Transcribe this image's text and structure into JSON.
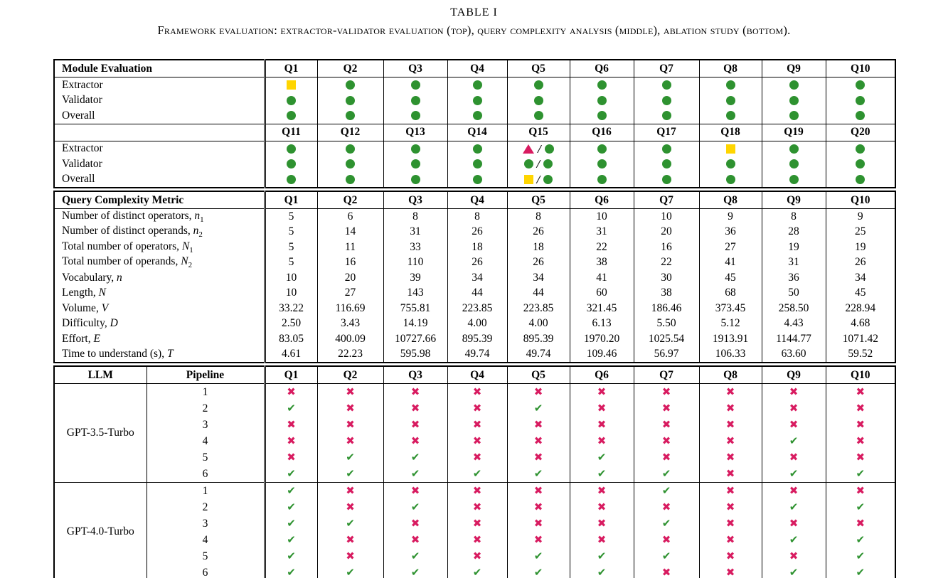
{
  "title": "TABLE I",
  "caption": "Framework evaluation: extractor-validator evaluation (top), query complexity analysis (middle), ablation study (bottom).",
  "colors": {
    "green": "#2E9230",
    "yellow": "#FFD500",
    "pink": "#D81B60"
  },
  "module": {
    "blocks": [
      {
        "header_label": "Module Evaluation",
        "columns": [
          "Q1",
          "Q2",
          "Q3",
          "Q4",
          "Q5",
          "Q6",
          "Q7",
          "Q8",
          "Q9",
          "Q10"
        ],
        "rows": [
          {
            "label": "Extractor",
            "cells": [
              "y",
              "g",
              "g",
              "g",
              "g",
              "g",
              "g",
              "g",
              "g",
              "g"
            ]
          },
          {
            "label": "Validator",
            "cells": [
              "g",
              "g",
              "g",
              "g",
              "g",
              "g",
              "g",
              "g",
              "g",
              "g"
            ]
          },
          {
            "label": "Overall",
            "cells": [
              "g",
              "g",
              "g",
              "g",
              "g",
              "g",
              "g",
              "g",
              "g",
              "g"
            ]
          }
        ]
      },
      {
        "header_label": "",
        "columns": [
          "Q11",
          "Q12",
          "Q13",
          "Q14",
          "Q15",
          "Q16",
          "Q17",
          "Q18",
          "Q19",
          "Q20"
        ],
        "rows": [
          {
            "label": "Extractor",
            "cells": [
              "g",
              "g",
              "g",
              "g",
              "t/g",
              "g",
              "g",
              "y",
              "g",
              "g"
            ]
          },
          {
            "label": "Validator",
            "cells": [
              "g",
              "g",
              "g",
              "g",
              "g/g",
              "g",
              "g",
              "g",
              "g",
              "g"
            ]
          },
          {
            "label": "Overall",
            "cells": [
              "g",
              "g",
              "g",
              "g",
              "y/g",
              "g",
              "g",
              "g",
              "g",
              "g"
            ]
          }
        ]
      }
    ]
  },
  "complexity": {
    "header_label": "Query Complexity Metric",
    "columns": [
      "Q1",
      "Q2",
      "Q3",
      "Q4",
      "Q5",
      "Q6",
      "Q7",
      "Q8",
      "Q9",
      "Q10"
    ],
    "rows": [
      {
        "label": "Number of distinct operators,",
        "var": "n",
        "sub": "1",
        "values": [
          "5",
          "6",
          "8",
          "8",
          "8",
          "10",
          "10",
          "9",
          "8",
          "9"
        ]
      },
      {
        "label": "Number of distinct operands,",
        "var": "n",
        "sub": "2",
        "values": [
          "5",
          "14",
          "31",
          "26",
          "26",
          "31",
          "20",
          "36",
          "28",
          "25"
        ]
      },
      {
        "label": "Total number of operators,",
        "var": "N",
        "sub": "1",
        "values": [
          "5",
          "11",
          "33",
          "18",
          "18",
          "22",
          "16",
          "27",
          "19",
          "19"
        ]
      },
      {
        "label": "Total number of operands,",
        "var": "N",
        "sub": "2",
        "values": [
          "5",
          "16",
          "110",
          "26",
          "26",
          "38",
          "22",
          "41",
          "31",
          "26"
        ]
      },
      {
        "label": "Vocabulary,",
        "var": "n",
        "sub": "",
        "values": [
          "10",
          "20",
          "39",
          "34",
          "34",
          "41",
          "30",
          "45",
          "36",
          "34"
        ]
      },
      {
        "label": "Length,",
        "var": "N",
        "sub": "",
        "values": [
          "10",
          "27",
          "143",
          "44",
          "44",
          "60",
          "38",
          "68",
          "50",
          "45"
        ]
      },
      {
        "label": "Volume,",
        "var": "V",
        "sub": "",
        "values": [
          "33.22",
          "116.69",
          "755.81",
          "223.85",
          "223.85",
          "321.45",
          "186.46",
          "373.45",
          "258.50",
          "228.94"
        ]
      },
      {
        "label": "Difficulty,",
        "var": "D",
        "sub": "",
        "values": [
          "2.50",
          "3.43",
          "14.19",
          "4.00",
          "4.00",
          "6.13",
          "5.50",
          "5.12",
          "4.43",
          "4.68"
        ]
      },
      {
        "label": "Effort,",
        "var": "E",
        "sub": "",
        "values": [
          "83.05",
          "400.09",
          "10727.66",
          "895.39",
          "895.39",
          "1970.20",
          "1025.54",
          "1913.91",
          "1144.77",
          "1071.42"
        ]
      },
      {
        "label": "Time to understand (s),",
        "var": "T",
        "sub": "",
        "values": [
          "4.61",
          "22.23",
          "595.98",
          "49.74",
          "49.74",
          "109.46",
          "56.97",
          "106.33",
          "63.60",
          "59.52"
        ]
      }
    ]
  },
  "ablation": {
    "llm_header": "LLM",
    "pipeline_header": "Pipeline",
    "columns": [
      "Q1",
      "Q2",
      "Q3",
      "Q4",
      "Q5",
      "Q6",
      "Q7",
      "Q8",
      "Q9",
      "Q10"
    ],
    "groups": [
      {
        "llm": "GPT-3.5-Turbo",
        "pipelines": [
          {
            "id": "1",
            "cells": [
              "x",
              "x",
              "x",
              "x",
              "x",
              "x",
              "x",
              "x",
              "x",
              "x"
            ]
          },
          {
            "id": "2",
            "cells": [
              "v",
              "x",
              "x",
              "x",
              "v",
              "x",
              "x",
              "x",
              "x",
              "x"
            ]
          },
          {
            "id": "3",
            "cells": [
              "x",
              "x",
              "x",
              "x",
              "x",
              "x",
              "x",
              "x",
              "x",
              "x"
            ]
          },
          {
            "id": "4",
            "cells": [
              "x",
              "x",
              "x",
              "x",
              "x",
              "x",
              "x",
              "x",
              "v",
              "x"
            ]
          },
          {
            "id": "5",
            "cells": [
              "x",
              "v",
              "v",
              "x",
              "x",
              "v",
              "x",
              "x",
              "x",
              "x"
            ]
          },
          {
            "id": "6",
            "cells": [
              "v",
              "v",
              "v",
              "v",
              "v",
              "v",
              "v",
              "x",
              "v",
              "v"
            ]
          }
        ]
      },
      {
        "llm": "GPT-4.0-Turbo",
        "pipelines": [
          {
            "id": "1",
            "cells": [
              "v",
              "x",
              "x",
              "x",
              "x",
              "x",
              "v",
              "x",
              "x",
              "x"
            ]
          },
          {
            "id": "2",
            "cells": [
              "v",
              "x",
              "v",
              "x",
              "x",
              "x",
              "x",
              "x",
              "v",
              "v"
            ]
          },
          {
            "id": "3",
            "cells": [
              "v",
              "v",
              "x",
              "x",
              "x",
              "x",
              "v",
              "x",
              "x",
              "x"
            ]
          },
          {
            "id": "4",
            "cells": [
              "v",
              "x",
              "x",
              "x",
              "x",
              "x",
              "x",
              "x",
              "v",
              "v"
            ]
          },
          {
            "id": "5",
            "cells": [
              "v",
              "x",
              "v",
              "x",
              "v",
              "v",
              "v",
              "x",
              "x",
              "v"
            ]
          },
          {
            "id": "6",
            "cells": [
              "v",
              "v",
              "v",
              "v",
              "v",
              "v",
              "x",
              "x",
              "v",
              "v"
            ]
          }
        ]
      }
    ]
  }
}
